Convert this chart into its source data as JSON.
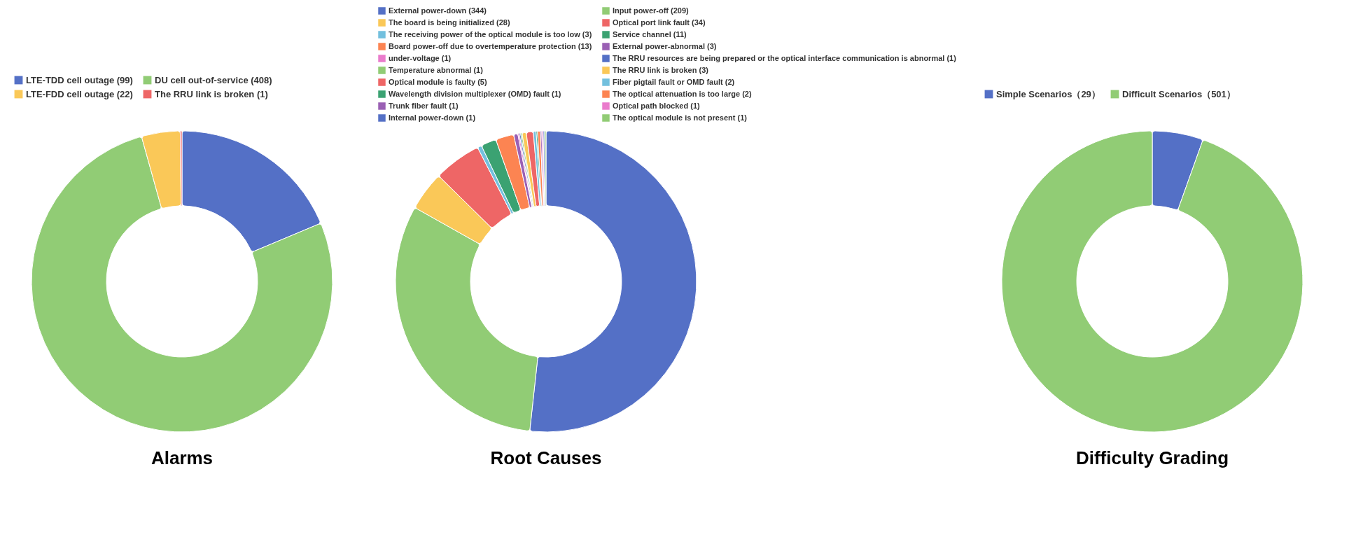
{
  "chart_data": [
    {
      "type": "donut",
      "title": "Alarms",
      "legend": "top",
      "categories": [
        "LTE-TDD cell outage (99)",
        "DU cell out-of-service (408)",
        "LTE-FDD cell outage (22)",
        "The RRU link is broken (1)"
      ],
      "values": [
        99,
        408,
        22,
        1
      ],
      "colors": [
        "#5470c6",
        "#91cc75",
        "#fac858",
        "#ee6666"
      ]
    },
    {
      "type": "donut",
      "title": "Root Causes",
      "legend": "top",
      "categories": [
        "External power-down (344)",
        "Input power-off (209)",
        "The board is being initialized (28)",
        "Optical port link fault (34)",
        "The receiving power of the optical module is too low (3)",
        "Service channel (11)",
        "Board power-off due to overtemperature protection (13)",
        "External power-abnormal (3)",
        "under-voltage (1)",
        "The RRU resources are being prepared or the optical interface communication is abnormal (1)",
        "Temperature abnormal (1)",
        "The RRU link is broken (3)",
        "Optical module is faulty (5)",
        "Fiber pigtail fault or OMD fault (2)",
        "Wavelength division multiplexer (OMD) fault (1)",
        "The optical attenuation is too large (2)",
        "Trunk fiber fault (1)",
        "Optical path blocked (1)",
        "Internal power-down (1)",
        "The optical module is not present (1)"
      ],
      "values": [
        344,
        209,
        28,
        34,
        3,
        11,
        13,
        3,
        1,
        1,
        1,
        3,
        5,
        2,
        1,
        2,
        1,
        1,
        1,
        1
      ],
      "colors": [
        "#5470c6",
        "#91cc75",
        "#fac858",
        "#ee6666",
        "#73c0de",
        "#3ba272",
        "#fc8452",
        "#9a60b4",
        "#ea7ccc",
        "#5470c6",
        "#91cc75",
        "#fac858",
        "#ee6666",
        "#73c0de",
        "#3ba272",
        "#fc8452",
        "#9a60b4",
        "#ea7ccc",
        "#5470c6",
        "#91cc75"
      ]
    },
    {
      "type": "donut",
      "title": "Difficulty Grading",
      "legend": "top",
      "categories": [
        "Simple Scenarios（29）",
        "Difficult Scenarios（501）"
      ],
      "values": [
        29,
        501
      ],
      "colors": [
        "#5470c6",
        "#91cc75"
      ]
    }
  ]
}
